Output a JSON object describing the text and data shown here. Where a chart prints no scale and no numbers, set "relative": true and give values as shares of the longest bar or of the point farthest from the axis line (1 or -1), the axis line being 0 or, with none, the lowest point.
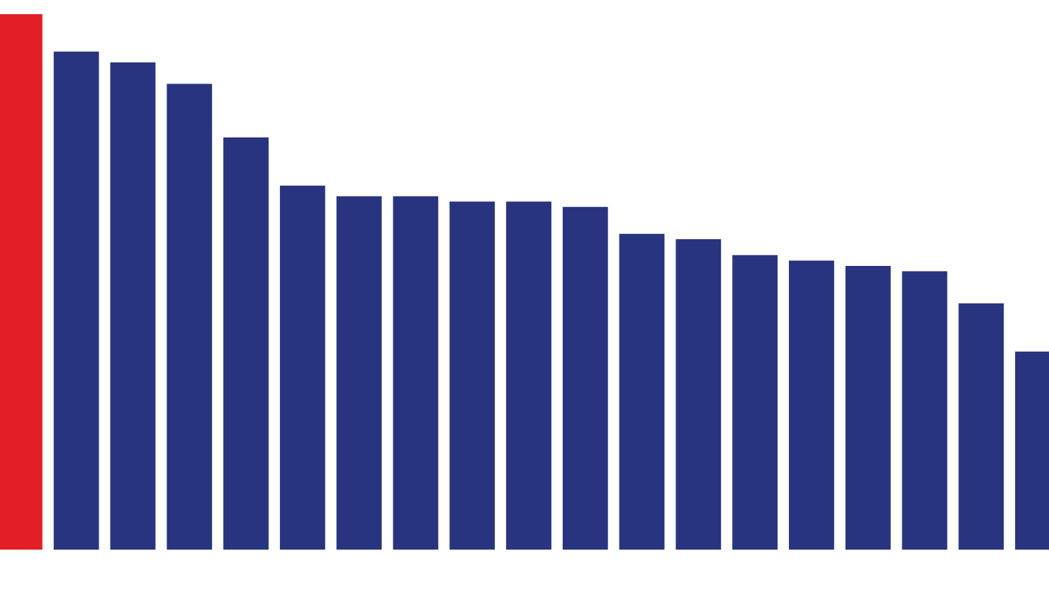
{
  "chart_data": {
    "type": "bar",
    "relative": true,
    "categories": [
      null,
      null,
      null,
      null,
      null,
      null,
      null,
      null,
      null,
      null,
      null,
      null,
      null,
      null,
      null,
      null,
      null,
      null,
      null
    ],
    "values": [
      1,
      0.93,
      0.91,
      0.87,
      0.77,
      0.68,
      0.66,
      0.66,
      0.65,
      0.65,
      0.64,
      0.59,
      0.58,
      0.55,
      0.54,
      0.53,
      0.52,
      0.46,
      0.37
    ],
    "colors": [
      "#e41e26",
      "#283480",
      "#283480",
      "#283480",
      "#283480",
      "#283480",
      "#283480",
      "#283480",
      "#283480",
      "#283480",
      "#283480",
      "#283480",
      "#283480",
      "#283480",
      "#283480",
      "#283480",
      "#283480",
      "#283480",
      "#283480"
    ],
    "legend": false
  }
}
